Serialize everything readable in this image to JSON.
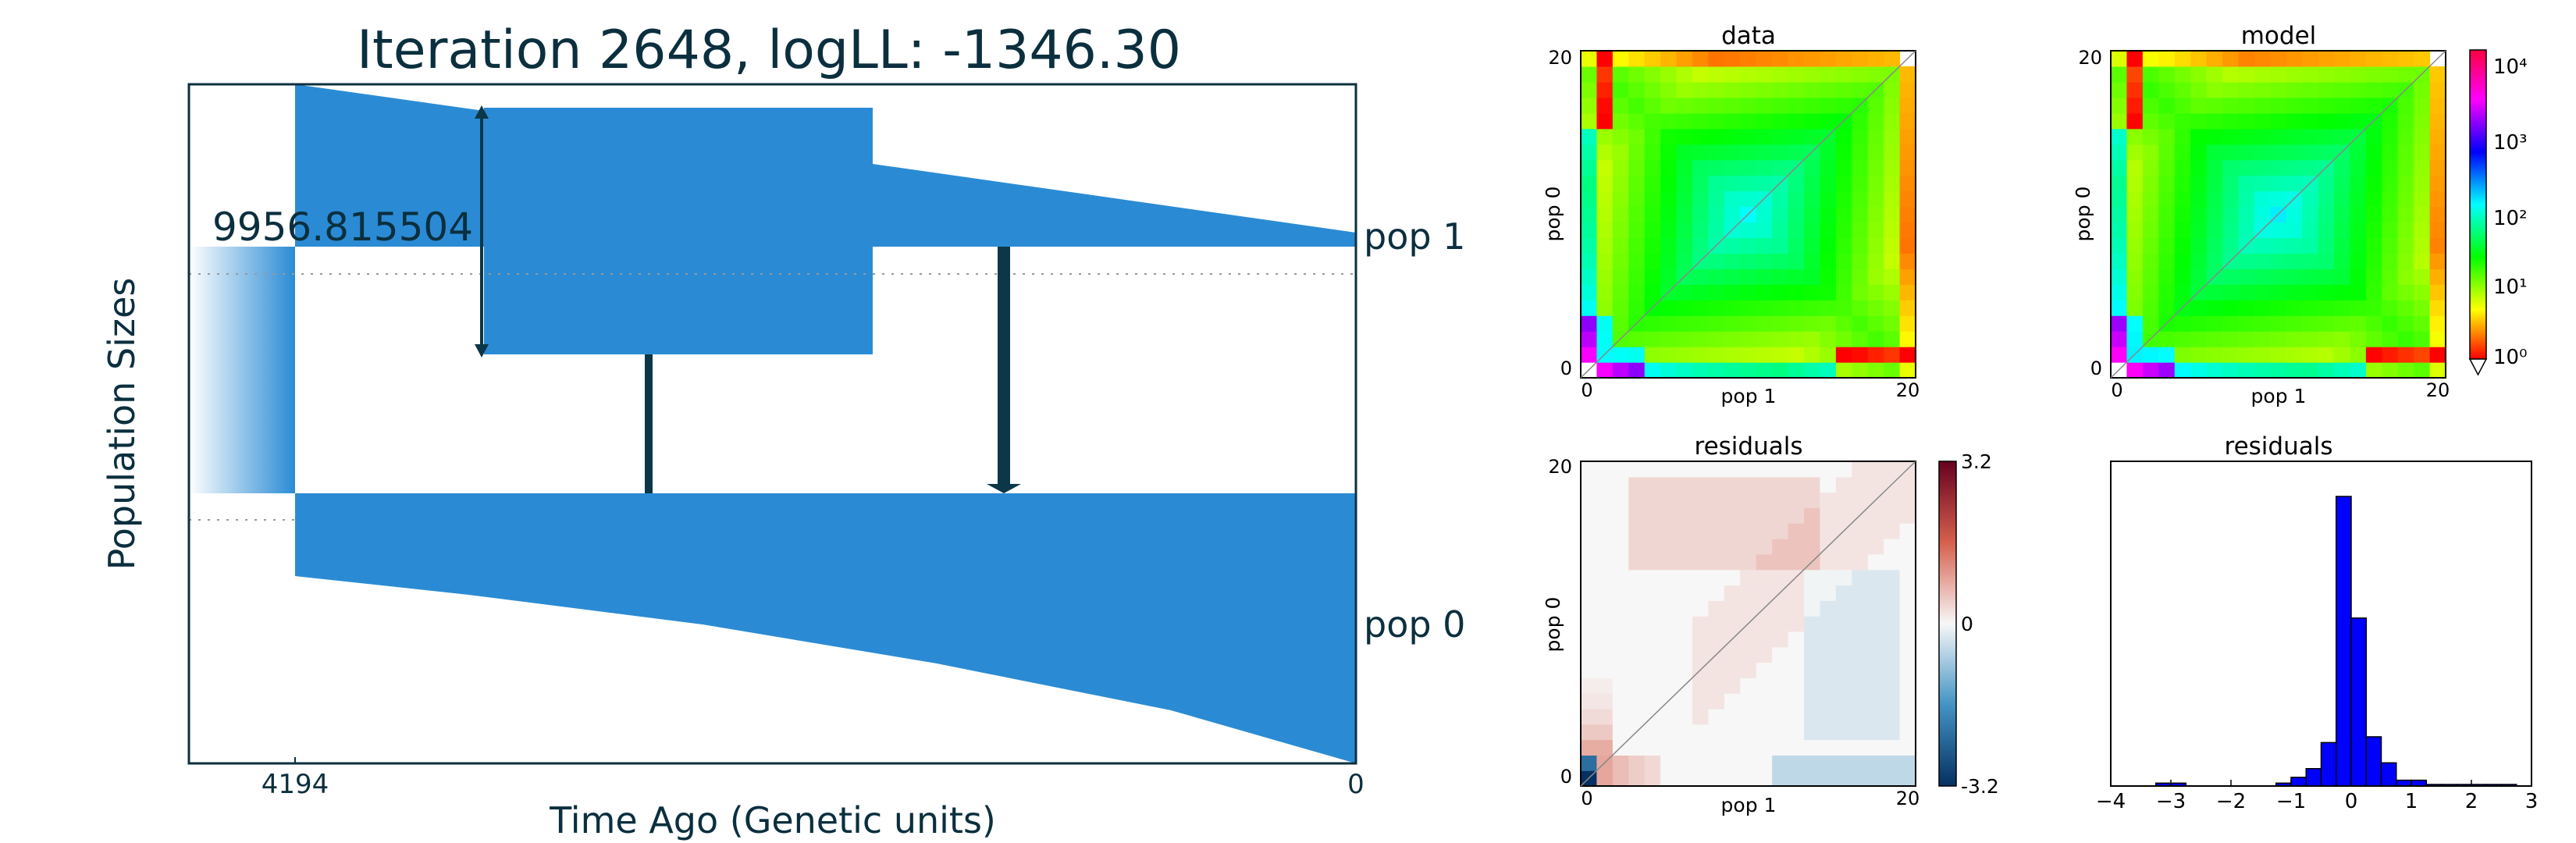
{
  "demography": {
    "title": "Iteration 2648, logLL:   -1346.30",
    "xlabel": "Time Ago (Genetic units)",
    "ylabel": "Population Sizes",
    "scale_label": "9956.815504",
    "xticks": [
      "4194",
      "0"
    ],
    "pop_labels": [
      "pop 1",
      "pop 0"
    ],
    "colors": {
      "population": "#2a8bd4",
      "arrow": "#0b3748",
      "text": "#0b2f3e"
    }
  },
  "chart_data": [
    {
      "type": "heatmap",
      "title": "data",
      "xlabel": "pop 1",
      "ylabel": "pop 0",
      "xticks": [
        "0",
        "20"
      ],
      "yticks": [
        "0",
        "20"
      ],
      "xlim": [
        0,
        20
      ],
      "ylim": [
        0,
        20
      ],
      "scale": "log"
    },
    {
      "type": "heatmap",
      "title": "model",
      "xlabel": "pop 1",
      "ylabel": "pop 0",
      "xticks": [
        "0",
        "20"
      ],
      "yticks": [
        "0",
        "20"
      ],
      "xlim": [
        0,
        20
      ],
      "ylim": [
        0,
        20
      ],
      "scale": "log",
      "colorbar": {
        "ticks": [
          "10⁰",
          "10¹",
          "10²",
          "10³",
          "10⁴"
        ],
        "range": [
          1,
          10000
        ]
      }
    },
    {
      "type": "heatmap",
      "title": "residuals",
      "xlabel": "pop 1",
      "ylabel": "pop 0",
      "xticks": [
        "0",
        "20"
      ],
      "yticks": [
        "0",
        "20"
      ],
      "xlim": [
        0,
        20
      ],
      "ylim": [
        0,
        20
      ],
      "colorbar": {
        "ticks": [
          "3.2",
          "0",
          "-3.2"
        ],
        "range": [
          -3.2,
          3.2
        ]
      }
    },
    {
      "type": "bar",
      "title": "residuals",
      "xticks": [
        "−4",
        "−3",
        "−2",
        "−1",
        "0",
        "1",
        "2",
        "3"
      ],
      "xlim": [
        -4,
        3
      ],
      "bin_width": 0.25,
      "bin_starts": [
        -3.25,
        -3.0,
        -2.75,
        -2.5,
        -2.25,
        -2.0,
        -1.75,
        -1.5,
        -1.25,
        -1.0,
        -0.75,
        -0.5,
        -0.25,
        0.0,
        0.25,
        0.5,
        0.75,
        1.0,
        1.25,
        1.5,
        1.75,
        2.0,
        2.25,
        2.5
      ],
      "values": [
        0.01,
        0.01,
        0,
        0,
        0,
        0,
        0,
        0,
        0.01,
        0.03,
        0.06,
        0.15,
        1.0,
        0.58,
        0.17,
        0.08,
        0.02,
        0.02,
        0.005,
        0.005,
        0.005,
        0.005,
        0.005,
        0.005
      ],
      "color": "#0000ff"
    }
  ]
}
